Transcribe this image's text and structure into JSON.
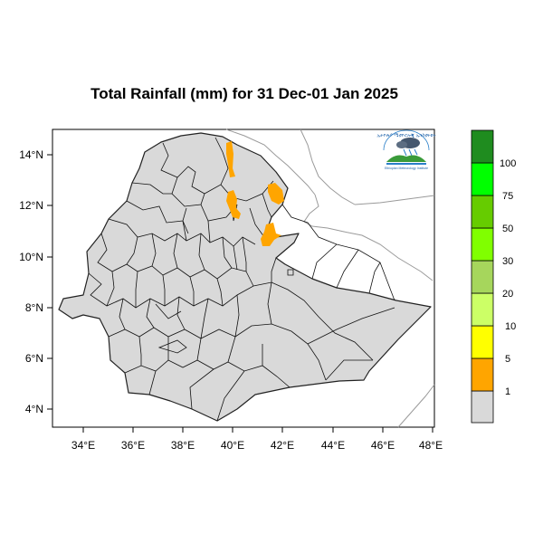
{
  "title": "Total Rainfall (mm) for 31 Dec-01 Jan 2025",
  "x_ticks": [
    "34°E",
    "36°E",
    "38°E",
    "40°E",
    "42°E",
    "44°E",
    "46°E",
    "48°E"
  ],
  "y_ticks": [
    "14°N",
    "12°N",
    "10°N",
    "8°N",
    "6°N",
    "4°N"
  ],
  "legend": {
    "labels": [
      "1",
      "5",
      "10",
      "20",
      "30",
      "50",
      "75",
      "100"
    ],
    "colors": [
      "#d9d9d9",
      "#ffa500",
      "#ffff00",
      "#ccff66",
      "#a6d65c",
      "#80ff00",
      "#66cc00",
      "#00ff00",
      "#1f8c1f"
    ]
  },
  "map": {
    "land_color": "#d9d9d9",
    "rain_color": "#ffa500",
    "lon_range": [
      33,
      48.2
    ],
    "lat_range": [
      3.2,
      15
    ]
  },
  "logo": {
    "top_text": "ኢትዮጵያ ሜቲዮሮሎጂ ኢንስቲትዩት",
    "bottom_text": "Ethiopian Meteorology Institute"
  }
}
